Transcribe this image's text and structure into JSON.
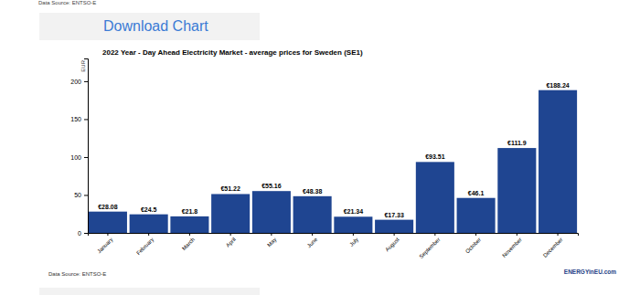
{
  "page": {
    "header_note": "Data Source: ENTSO-E",
    "button": "Download Chart",
    "source": "Data Source: ENTSO-E",
    "logo": "ENERGYinEU.com"
  },
  "chart_data": {
    "type": "bar",
    "title": "2022 Year - Day Ahead Electricity Market - average prices for Sweden (SE1)",
    "y_label": "EUR",
    "categories": [
      "January",
      "February",
      "March",
      "April",
      "May",
      "June",
      "July",
      "August",
      "September",
      "October",
      "November",
      "December"
    ],
    "values": [
      28.08,
      24.5,
      21.8,
      51.22,
      55.16,
      48.38,
      21.34,
      17.33,
      93.51,
      46.1,
      111.9,
      188.24
    ],
    "value_labels": [
      "€28.08",
      "€24.5",
      "€21.8",
      "€51.22",
      "€55.16",
      "€48.38",
      "€21.34",
      "€17.33",
      "€93.51",
      "€46.1",
      "€111.9",
      "€188.24"
    ],
    "color": "#1f4591",
    "ylim": [
      0,
      230
    ],
    "yticks": [
      0,
      50,
      100,
      150,
      200
    ],
    "grid": false,
    "data_labels": true
  }
}
